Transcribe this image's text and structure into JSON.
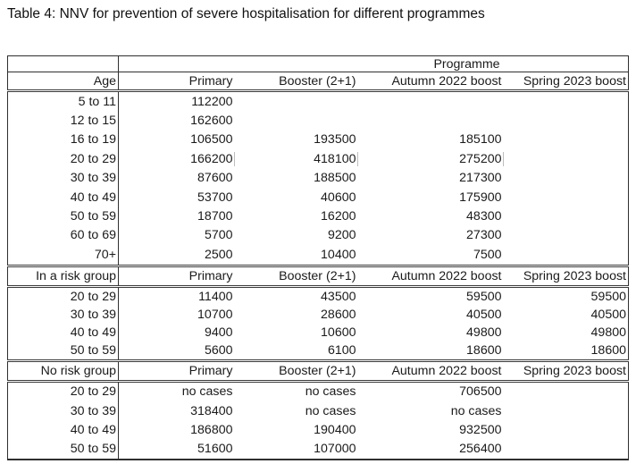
{
  "title": "Table 4: NNV for prevention of severe hospitalisation for different programmes",
  "table": {
    "programme_header": "Programme",
    "columns": [
      "Primary",
      "Booster (2+1)",
      "Autumn 2022 boost",
      "Spring 2023 boost"
    ],
    "sections": [
      {
        "label": "Age",
        "rows": [
          {
            "label": "5 to 11",
            "values": [
              "112200",
              "",
              "",
              ""
            ]
          },
          {
            "label": "12 to 15",
            "values": [
              "162600",
              "",
              "",
              ""
            ]
          },
          {
            "label": "16 to 19",
            "values": [
              "106500",
              "193500",
              "185100",
              ""
            ]
          },
          {
            "label": "20 to 29",
            "values": [
              "166200",
              "418100",
              "275200",
              ""
            ],
            "ticks": true
          },
          {
            "label": "30 to 39",
            "values": [
              "87600",
              "188500",
              "217300",
              ""
            ]
          },
          {
            "label": "40 to 49",
            "values": [
              "53700",
              "40600",
              "175900",
              ""
            ]
          },
          {
            "label": "50 to 59",
            "values": [
              "18700",
              "16200",
              "48300",
              ""
            ]
          },
          {
            "label": "60 to 69",
            "values": [
              "5700",
              "9200",
              "27300",
              ""
            ]
          },
          {
            "label": "70+",
            "values": [
              "2500",
              "10400",
              "7500",
              ""
            ]
          }
        ]
      },
      {
        "label": "In a risk group",
        "rows": [
          {
            "label": "20 to 29",
            "values": [
              "11400",
              "43500",
              "59500",
              "59500"
            ]
          },
          {
            "label": "30 to 39",
            "values": [
              "10700",
              "28600",
              "40500",
              "40500"
            ]
          },
          {
            "label": "40 to 49",
            "values": [
              "9400",
              "10600",
              "49800",
              "49800"
            ]
          },
          {
            "label": "50 to 59",
            "values": [
              "5600",
              "6100",
              "18600",
              "18600"
            ]
          }
        ]
      },
      {
        "label": "No risk group",
        "rows": [
          {
            "label": "20 to 29",
            "values": [
              "no cases",
              "no cases",
              "706500",
              ""
            ]
          },
          {
            "label": "30 to 39",
            "values": [
              "318400",
              "no cases",
              "no cases",
              ""
            ]
          },
          {
            "label": "40 to 49",
            "values": [
              "186800",
              "190400",
              "932500",
              ""
            ]
          },
          {
            "label": "50 to 59",
            "values": [
              "51600",
              "107000",
              "256400",
              ""
            ]
          }
        ]
      }
    ]
  }
}
